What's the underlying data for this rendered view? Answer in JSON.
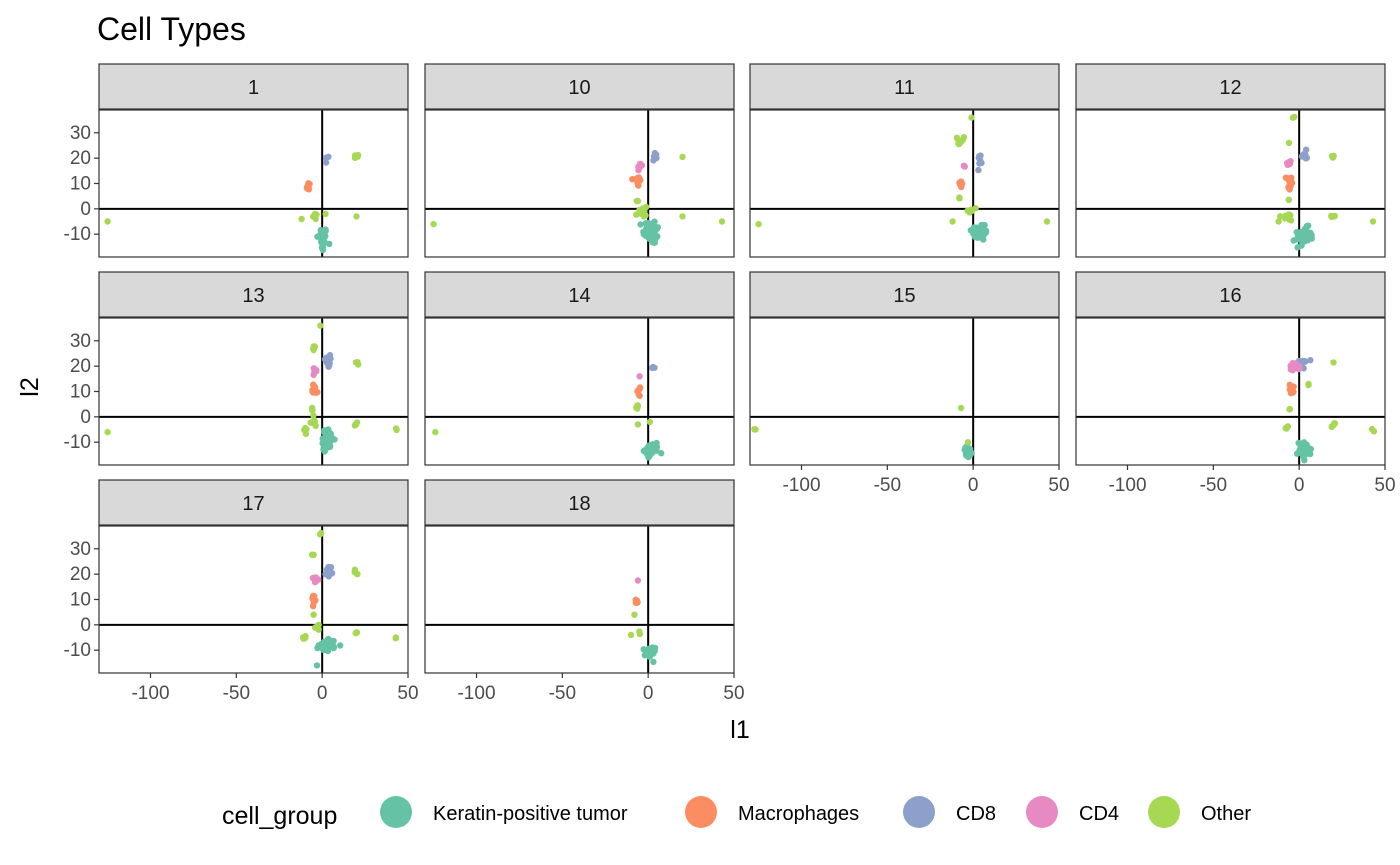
{
  "chart_data": {
    "type": "scatter",
    "title": "Cell Types",
    "xlabel": "l1",
    "ylabel": "l2",
    "xlim": [
      -130,
      50
    ],
    "ylim": [
      -19,
      39
    ],
    "xticks": [
      -100,
      -50,
      0,
      50
    ],
    "yticks": [
      -10,
      0,
      10,
      20,
      30
    ],
    "reference_lines": {
      "x": 0,
      "y": 0
    },
    "legend": {
      "title": "cell_group",
      "placement": "bottom",
      "entries": [
        {
          "name": "Keratin-positive tumor",
          "color": "#66C2A5"
        },
        {
          "name": "Macrophages",
          "color": "#FC8D62"
        },
        {
          "name": "CD8",
          "color": "#8DA0CB"
        },
        {
          "name": "CD4",
          "color": "#E78AC3"
        },
        {
          "name": "Other",
          "color": "#A6D854"
        }
      ]
    },
    "panels": [
      {
        "label": "1",
        "clusters": [
          {
            "group": 0,
            "x": 0,
            "y": -12,
            "sx": 1.5,
            "sy": 2.5,
            "n": 30
          },
          {
            "group": 1,
            "x": -8,
            "y": 9,
            "sx": 0.6,
            "sy": 0.8,
            "n": 8
          },
          {
            "group": 2,
            "x": 3,
            "y": 19.5,
            "sx": 1,
            "sy": 1,
            "n": 3
          },
          {
            "group": 4,
            "x": 20,
            "y": 20.5,
            "sx": 0.6,
            "sy": 0.5,
            "n": 4
          },
          {
            "group": 4,
            "x": -4,
            "y": -3,
            "sx": 1,
            "sy": 0.6,
            "n": 4
          },
          {
            "group": 4,
            "x": -125,
            "y": -5,
            "sx": 0.3,
            "sy": 0.3,
            "n": 1
          },
          {
            "group": 4,
            "x": 20,
            "y": -3,
            "sx": 0.3,
            "sy": 0.3,
            "n": 1
          },
          {
            "group": 4,
            "x": -12,
            "y": -4,
            "sx": 0.3,
            "sy": 0.3,
            "n": 1
          },
          {
            "group": 4,
            "x": 2,
            "y": -2,
            "sx": 0.3,
            "sy": 0.3,
            "n": 1
          }
        ]
      },
      {
        "label": "10",
        "clusters": [
          {
            "group": 0,
            "x": 2,
            "y": -9,
            "sx": 2.5,
            "sy": 2.5,
            "n": 40
          },
          {
            "group": 1,
            "x": -6,
            "y": 11,
            "sx": 0.8,
            "sy": 1.5,
            "n": 15
          },
          {
            "group": 2,
            "x": 4,
            "y": 20.5,
            "sx": 0.8,
            "sy": 1,
            "n": 8
          },
          {
            "group": 3,
            "x": -5,
            "y": 17,
            "sx": 0.6,
            "sy": 1,
            "n": 8
          },
          {
            "group": 4,
            "x": -4,
            "y": -2,
            "sx": 2,
            "sy": 2,
            "n": 10
          },
          {
            "group": 4,
            "x": 20,
            "y": 20.5,
            "sx": 0.3,
            "sy": 0.3,
            "n": 1
          },
          {
            "group": 4,
            "x": 20,
            "y": -3,
            "sx": 0.3,
            "sy": 0.3,
            "n": 1
          },
          {
            "group": 4,
            "x": 43,
            "y": -5,
            "sx": 0.3,
            "sy": 0.3,
            "n": 1
          },
          {
            "group": 4,
            "x": -125,
            "y": -6,
            "sx": 0.3,
            "sy": 0.3,
            "n": 1
          },
          {
            "group": 4,
            "x": -6,
            "y": 3,
            "sx": 0.4,
            "sy": 0.4,
            "n": 2
          }
        ]
      },
      {
        "label": "11",
        "clusters": [
          {
            "group": 0,
            "x": 4,
            "y": -9,
            "sx": 2.5,
            "sy": 1.8,
            "n": 35
          },
          {
            "group": 1,
            "x": -7,
            "y": 10,
            "sx": 0.6,
            "sy": 1,
            "n": 8
          },
          {
            "group": 2,
            "x": 4,
            "y": 19.5,
            "sx": 0.6,
            "sy": 1,
            "n": 8
          },
          {
            "group": 3,
            "x": -5,
            "y": 17,
            "sx": 0.5,
            "sy": 0.5,
            "n": 3
          },
          {
            "group": 4,
            "x": -7,
            "y": 27,
            "sx": 1,
            "sy": 1,
            "n": 8
          },
          {
            "group": 4,
            "x": -1,
            "y": 36,
            "sx": 0.3,
            "sy": 0.3,
            "n": 1
          },
          {
            "group": 4,
            "x": -1,
            "y": -1,
            "sx": 1.5,
            "sy": 1,
            "n": 5
          },
          {
            "group": 4,
            "x": -8,
            "y": 4,
            "sx": 0.3,
            "sy": 0.3,
            "n": 2
          },
          {
            "group": 4,
            "x": -125,
            "y": -6,
            "sx": 0.3,
            "sy": 0.3,
            "n": 1
          },
          {
            "group": 4,
            "x": 43,
            "y": -5,
            "sx": 0.3,
            "sy": 0.3,
            "n": 1
          },
          {
            "group": 4,
            "x": -12,
            "y": -5,
            "sx": 0.3,
            "sy": 0.3,
            "n": 1
          }
        ]
      },
      {
        "label": "12",
        "clusters": [
          {
            "group": 0,
            "x": 3,
            "y": -11,
            "sx": 2.5,
            "sy": 1.8,
            "n": 45
          },
          {
            "group": 1,
            "x": -6,
            "y": 10.5,
            "sx": 0.8,
            "sy": 1.5,
            "n": 12
          },
          {
            "group": 2,
            "x": 3,
            "y": 21,
            "sx": 0.8,
            "sy": 1,
            "n": 12
          },
          {
            "group": 3,
            "x": -6,
            "y": 18,
            "sx": 0.6,
            "sy": 0.8,
            "n": 8
          },
          {
            "group": 4,
            "x": -3,
            "y": 36,
            "sx": 0.3,
            "sy": 0.3,
            "n": 2
          },
          {
            "group": 4,
            "x": 20,
            "y": 21,
            "sx": 0.5,
            "sy": 0.5,
            "n": 4
          },
          {
            "group": 4,
            "x": 20,
            "y": -3,
            "sx": 0.6,
            "sy": 0.5,
            "n": 4
          },
          {
            "group": 4,
            "x": -6,
            "y": -3,
            "sx": 2,
            "sy": 1.5,
            "n": 8
          },
          {
            "group": 4,
            "x": -6,
            "y": 3,
            "sx": 0.3,
            "sy": 0.3,
            "n": 2
          },
          {
            "group": 4,
            "x": -6,
            "y": 26,
            "sx": 0.3,
            "sy": 0.3,
            "n": 1
          },
          {
            "group": 4,
            "x": 43,
            "y": -5,
            "sx": 0.3,
            "sy": 0.3,
            "n": 1
          },
          {
            "group": 4,
            "x": -12,
            "y": -5,
            "sx": 0.3,
            "sy": 0.3,
            "n": 1
          }
        ]
      },
      {
        "label": "13",
        "clusters": [
          {
            "group": 0,
            "x": 3,
            "y": -9,
            "sx": 2,
            "sy": 2,
            "n": 35
          },
          {
            "group": 1,
            "x": -4,
            "y": 11,
            "sx": 0.8,
            "sy": 1,
            "n": 12
          },
          {
            "group": 2,
            "x": 3,
            "y": 22,
            "sx": 0.8,
            "sy": 1.2,
            "n": 12
          },
          {
            "group": 3,
            "x": -4,
            "y": 18,
            "sx": 0.6,
            "sy": 0.8,
            "n": 8
          },
          {
            "group": 4,
            "x": -5,
            "y": 27,
            "sx": 0.5,
            "sy": 0.6,
            "n": 6
          },
          {
            "group": 4,
            "x": -1,
            "y": 36,
            "sx": 0.3,
            "sy": 0.3,
            "n": 1
          },
          {
            "group": 4,
            "x": 20,
            "y": 21,
            "sx": 0.5,
            "sy": 0.4,
            "n": 4
          },
          {
            "group": 4,
            "x": 20,
            "y": -3,
            "sx": 0.5,
            "sy": 0.5,
            "n": 4
          },
          {
            "group": 4,
            "x": -10,
            "y": -5,
            "sx": 0.6,
            "sy": 0.6,
            "n": 5
          },
          {
            "group": 4,
            "x": -5,
            "y": -2,
            "sx": 1,
            "sy": 1,
            "n": 6
          },
          {
            "group": 4,
            "x": -6,
            "y": 3,
            "sx": 0.4,
            "sy": 0.4,
            "n": 3
          },
          {
            "group": 4,
            "x": -125,
            "y": -6,
            "sx": 0.3,
            "sy": 0.3,
            "n": 1
          },
          {
            "group": 4,
            "x": 43,
            "y": -5,
            "sx": 0.4,
            "sy": 0.4,
            "n": 2
          }
        ]
      },
      {
        "label": "14",
        "clusters": [
          {
            "group": 0,
            "x": 2,
            "y": -13,
            "sx": 2,
            "sy": 1.2,
            "n": 45
          },
          {
            "group": 1,
            "x": -6,
            "y": 10,
            "sx": 0.6,
            "sy": 0.8,
            "n": 6
          },
          {
            "group": 2,
            "x": 3,
            "y": 19,
            "sx": 0.4,
            "sy": 0.4,
            "n": 3
          },
          {
            "group": 3,
            "x": -5,
            "y": 16,
            "sx": 0.3,
            "sy": 0.3,
            "n": 1
          },
          {
            "group": 4,
            "x": -6,
            "y": 4,
            "sx": 0.4,
            "sy": 0.5,
            "n": 4
          },
          {
            "group": 4,
            "x": -6,
            "y": -3,
            "sx": 0.3,
            "sy": 0.3,
            "n": 1
          },
          {
            "group": 4,
            "x": 1,
            "y": -2,
            "sx": 0.3,
            "sy": 0.3,
            "n": 1
          },
          {
            "group": 4,
            "x": -124,
            "y": -6,
            "sx": 0.3,
            "sy": 0.3,
            "n": 1
          }
        ]
      },
      {
        "label": "15",
        "clusters": [
          {
            "group": 0,
            "x": -3,
            "y": -14,
            "sx": 1.2,
            "sy": 1.2,
            "n": 30
          },
          {
            "group": 4,
            "x": -127,
            "y": -5,
            "sx": 0.4,
            "sy": 0.4,
            "n": 3
          },
          {
            "group": 4,
            "x": -7,
            "y": 3.5,
            "sx": 0.3,
            "sy": 0.3,
            "n": 1
          },
          {
            "group": 4,
            "x": -3,
            "y": -10,
            "sx": 0.3,
            "sy": 0.3,
            "n": 1
          }
        ]
      },
      {
        "label": "16",
        "clusters": [
          {
            "group": 0,
            "x": 3,
            "y": -13,
            "sx": 2,
            "sy": 1.5,
            "n": 45
          },
          {
            "group": 1,
            "x": -4,
            "y": 11,
            "sx": 0.8,
            "sy": 1,
            "n": 8
          },
          {
            "group": 2,
            "x": 2,
            "y": 21,
            "sx": 1.5,
            "sy": 1,
            "n": 10
          },
          {
            "group": 3,
            "x": -3,
            "y": 19.5,
            "sx": 1.5,
            "sy": 0.8,
            "n": 15
          },
          {
            "group": 4,
            "x": 20,
            "y": 21.5,
            "sx": 0.3,
            "sy": 0.3,
            "n": 1
          },
          {
            "group": 4,
            "x": 20,
            "y": -3,
            "sx": 0.5,
            "sy": 0.5,
            "n": 4
          },
          {
            "group": 4,
            "x": 43,
            "y": -5,
            "sx": 0.4,
            "sy": 0.4,
            "n": 2
          },
          {
            "group": 4,
            "x": -8,
            "y": -4,
            "sx": 1,
            "sy": 1,
            "n": 5
          },
          {
            "group": 4,
            "x": 5,
            "y": 13,
            "sx": 0.4,
            "sy": 0.4,
            "n": 2
          },
          {
            "group": 4,
            "x": -5,
            "y": 3,
            "sx": 0.4,
            "sy": 0.4,
            "n": 2
          }
        ]
      },
      {
        "label": "17",
        "clusters": [
          {
            "group": 0,
            "x": 3,
            "y": -8,
            "sx": 2.5,
            "sy": 1.2,
            "n": 40
          },
          {
            "group": 1,
            "x": -5,
            "y": 10.5,
            "sx": 0.6,
            "sy": 0.8,
            "n": 8
          },
          {
            "group": 2,
            "x": 4,
            "y": 21,
            "sx": 0.8,
            "sy": 1.2,
            "n": 12
          },
          {
            "group": 3,
            "x": -4,
            "y": 18,
            "sx": 0.6,
            "sy": 0.8,
            "n": 8
          },
          {
            "group": 4,
            "x": -5,
            "y": 27,
            "sx": 0.4,
            "sy": 0.4,
            "n": 3
          },
          {
            "group": 4,
            "x": -1,
            "y": 36,
            "sx": 0.3,
            "sy": 0.3,
            "n": 2
          },
          {
            "group": 4,
            "x": 20,
            "y": 21,
            "sx": 0.5,
            "sy": 0.5,
            "n": 4
          },
          {
            "group": 4,
            "x": 20,
            "y": -3,
            "sx": 0.4,
            "sy": 0.4,
            "n": 3
          },
          {
            "group": 4,
            "x": 43,
            "y": -5,
            "sx": 0.4,
            "sy": 0.4,
            "n": 2
          },
          {
            "group": 4,
            "x": -10,
            "y": -5,
            "sx": 0.6,
            "sy": 0.5,
            "n": 5
          },
          {
            "group": 4,
            "x": -4,
            "y": -2,
            "sx": 0.8,
            "sy": 0.8,
            "n": 4
          },
          {
            "group": 4,
            "x": -5,
            "y": 4,
            "sx": 0.3,
            "sy": 0.3,
            "n": 1
          },
          {
            "group": 4,
            "x": -2,
            "y": 0,
            "sx": 0.3,
            "sy": 0.3,
            "n": 1
          },
          {
            "group": 0,
            "x": -3,
            "y": -16,
            "sx": 0.3,
            "sy": 0.3,
            "n": 1
          }
        ]
      },
      {
        "label": "18",
        "clusters": [
          {
            "group": 0,
            "x": 1,
            "y": -11,
            "sx": 1.5,
            "sy": 1.2,
            "n": 30
          },
          {
            "group": 1,
            "x": -7,
            "y": 9,
            "sx": 0.6,
            "sy": 0.6,
            "n": 6
          },
          {
            "group": 3,
            "x": -6,
            "y": 17.5,
            "sx": 0.3,
            "sy": 0.3,
            "n": 1
          },
          {
            "group": 4,
            "x": -10,
            "y": -4,
            "sx": 0.3,
            "sy": 0.3,
            "n": 1
          },
          {
            "group": 4,
            "x": -5,
            "y": -3,
            "sx": 0.4,
            "sy": 0.4,
            "n": 2
          },
          {
            "group": 4,
            "x": -8,
            "y": 4,
            "sx": 0.3,
            "sy": 0.3,
            "n": 1
          }
        ]
      }
    ]
  }
}
